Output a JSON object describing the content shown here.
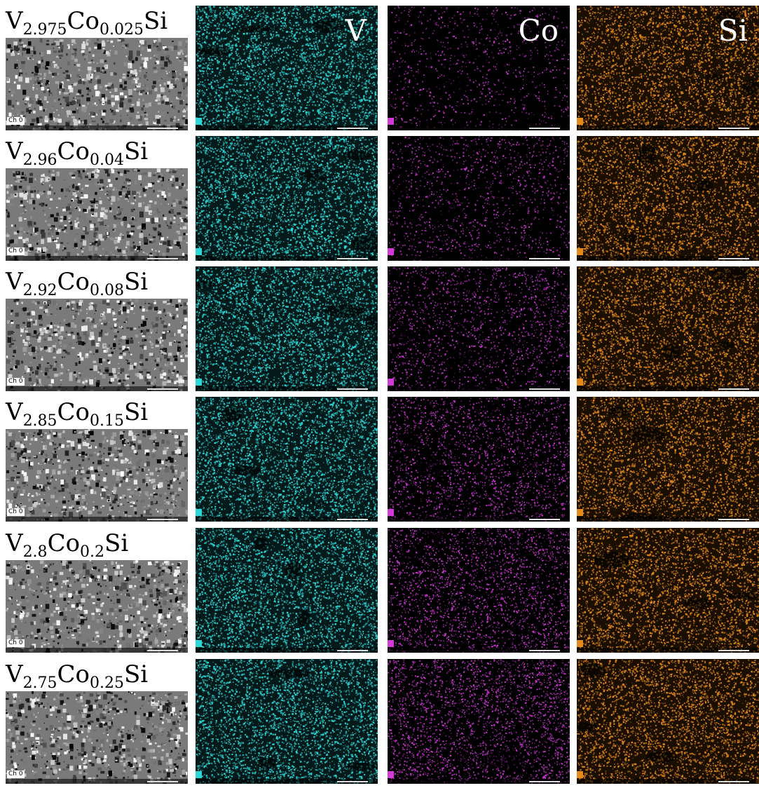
{
  "figure": {
    "element_headers": [
      "V",
      "Co",
      "Si"
    ],
    "channel_label": "Ch 0",
    "map_colors": {
      "V": "#2fd6d6",
      "Co": "#d23ad8",
      "Si": "#e38a1e"
    },
    "rows": [
      {
        "label": {
          "v_sub": "2.975",
          "co_sub": "0.025"
        }
      },
      {
        "label": {
          "v_sub": "2.96",
          "co_sub": "0.04"
        }
      },
      {
        "label": {
          "v_sub": "2.92",
          "co_sub": "0.08"
        }
      },
      {
        "label": {
          "v_sub": "2.85",
          "co_sub": "0.15"
        }
      },
      {
        "label": {
          "v_sub": "2.8",
          "co_sub": "0.2"
        }
      },
      {
        "label": {
          "v_sub": "2.75",
          "co_sub": "0.25"
        }
      }
    ],
    "symbols": {
      "v": "V",
      "co": "Co",
      "si": "Si"
    }
  }
}
